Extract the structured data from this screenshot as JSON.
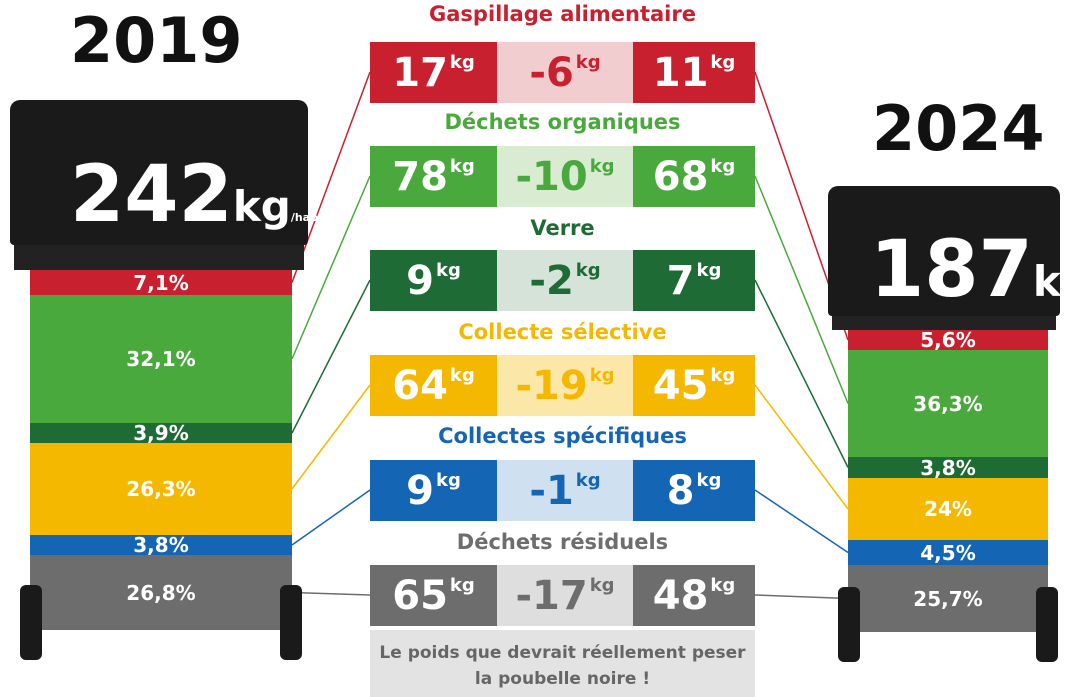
{
  "years": {
    "left": "2019",
    "right": "2024"
  },
  "unit": "kg",
  "per_inhabitant": "/hab./an",
  "bins": [
    {
      "total": "242",
      "segments": [
        "7,1%",
        "32,1%",
        "3,9%",
        "26,3%",
        "3,8%",
        "26,8%"
      ]
    },
    {
      "total": "187",
      "segments": [
        "5,6%",
        "36,3%",
        "3,8%",
        "24%",
        "4,5%",
        "25,7%"
      ]
    }
  ],
  "categories": [
    {
      "title": "Gaspillage alimentaire",
      "before": "17",
      "change": "-6",
      "after": "11",
      "color": "#c8202e",
      "light": "#f2cdd0"
    },
    {
      "title": "Déchets organiques",
      "before": "78",
      "change": "-10",
      "after": "68",
      "color": "#4aa93c",
      "light": "#d9ecd2"
    },
    {
      "title": "Verre",
      "before": "9",
      "change": "-2",
      "after": "7",
      "color": "#1e6b35",
      "light": "#d5e3d8"
    },
    {
      "title": "Collecte sélective",
      "before": "64",
      "change": "-19",
      "after": "45",
      "color": "#f5b800",
      "light": "#fbe7a8"
    },
    {
      "title": "Collectes spécifiques",
      "before": "9",
      "change": "-1",
      "after": "8",
      "color": "#1565b5",
      "light": "#cfe1f1"
    },
    {
      "title": "Déchets résiduels",
      "before": "65",
      "change": "-17",
      "after": "48",
      "color": "#6d6d6d",
      "light": "#dedede"
    }
  ],
  "note": "Le poids que devrait réellement peser la poubelle noire !"
}
